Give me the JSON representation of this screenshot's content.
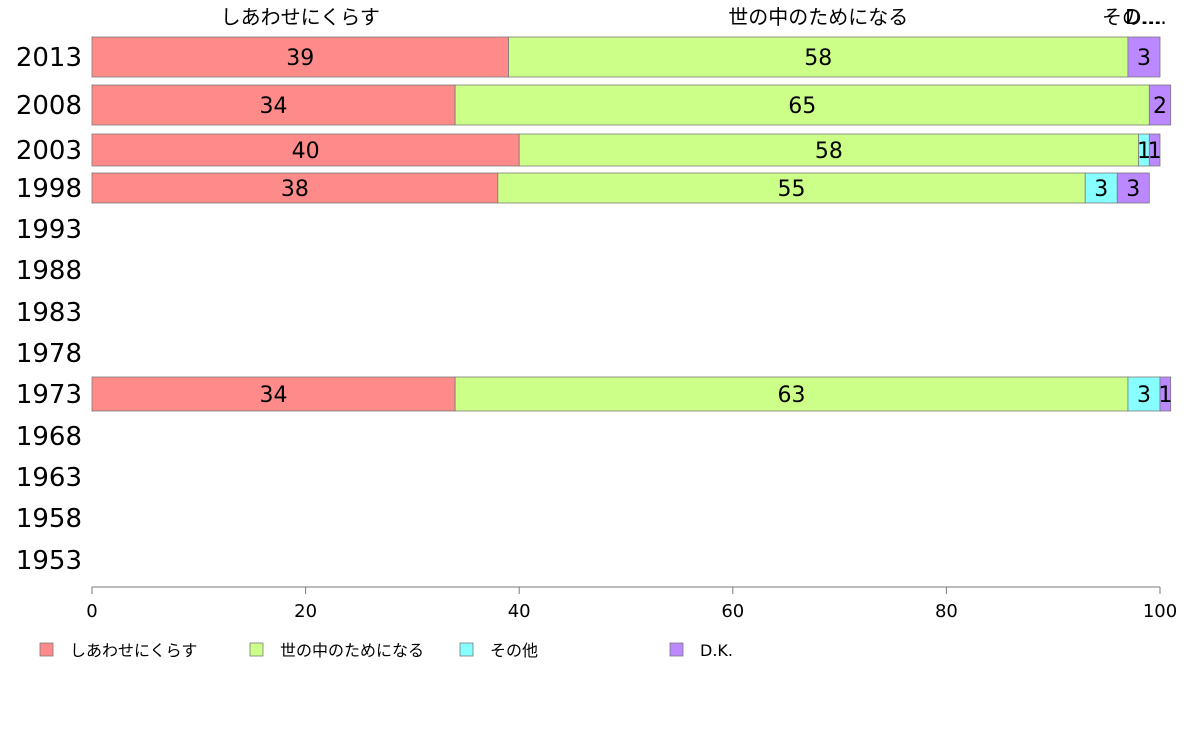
{
  "chart_data": {
    "type": "bar",
    "orientation": "horizontal",
    "stacked": true,
    "categories": [
      "2013",
      "2008",
      "2003",
      "1998",
      "1993",
      "1988",
      "1983",
      "1978",
      "1973",
      "1968",
      "1963",
      "1958",
      "1953"
    ],
    "series": [
      {
        "name": "しあわせにくらす",
        "color": "#ff8a8a",
        "values": [
          39,
          34,
          40,
          38,
          null,
          null,
          null,
          null,
          34,
          null,
          null,
          null,
          null
        ]
      },
      {
        "name": "世の中のためになる",
        "color": "#ccff88",
        "values": [
          58,
          65,
          58,
          55,
          null,
          null,
          null,
          null,
          63,
          null,
          null,
          null,
          null
        ]
      },
      {
        "name": "その他",
        "color": "#88ffff",
        "values": [
          0,
          0,
          1,
          3,
          null,
          null,
          null,
          null,
          3,
          null,
          null,
          null,
          null
        ]
      },
      {
        "name": "D.K.",
        "color": "#bb88ff",
        "values": [
          3,
          2,
          1,
          3,
          null,
          null,
          null,
          null,
          1,
          null,
          null,
          null,
          null
        ]
      }
    ],
    "top_labels": [
      "しあわせにくらす",
      "世の中のためになる",
      "その…",
      "D.…"
    ],
    "xlim": [
      0,
      100
    ],
    "xticks": [
      "0",
      "20",
      "40",
      "60",
      "80",
      "100"
    ],
    "grid": false,
    "legend_position": "bottom-left"
  }
}
